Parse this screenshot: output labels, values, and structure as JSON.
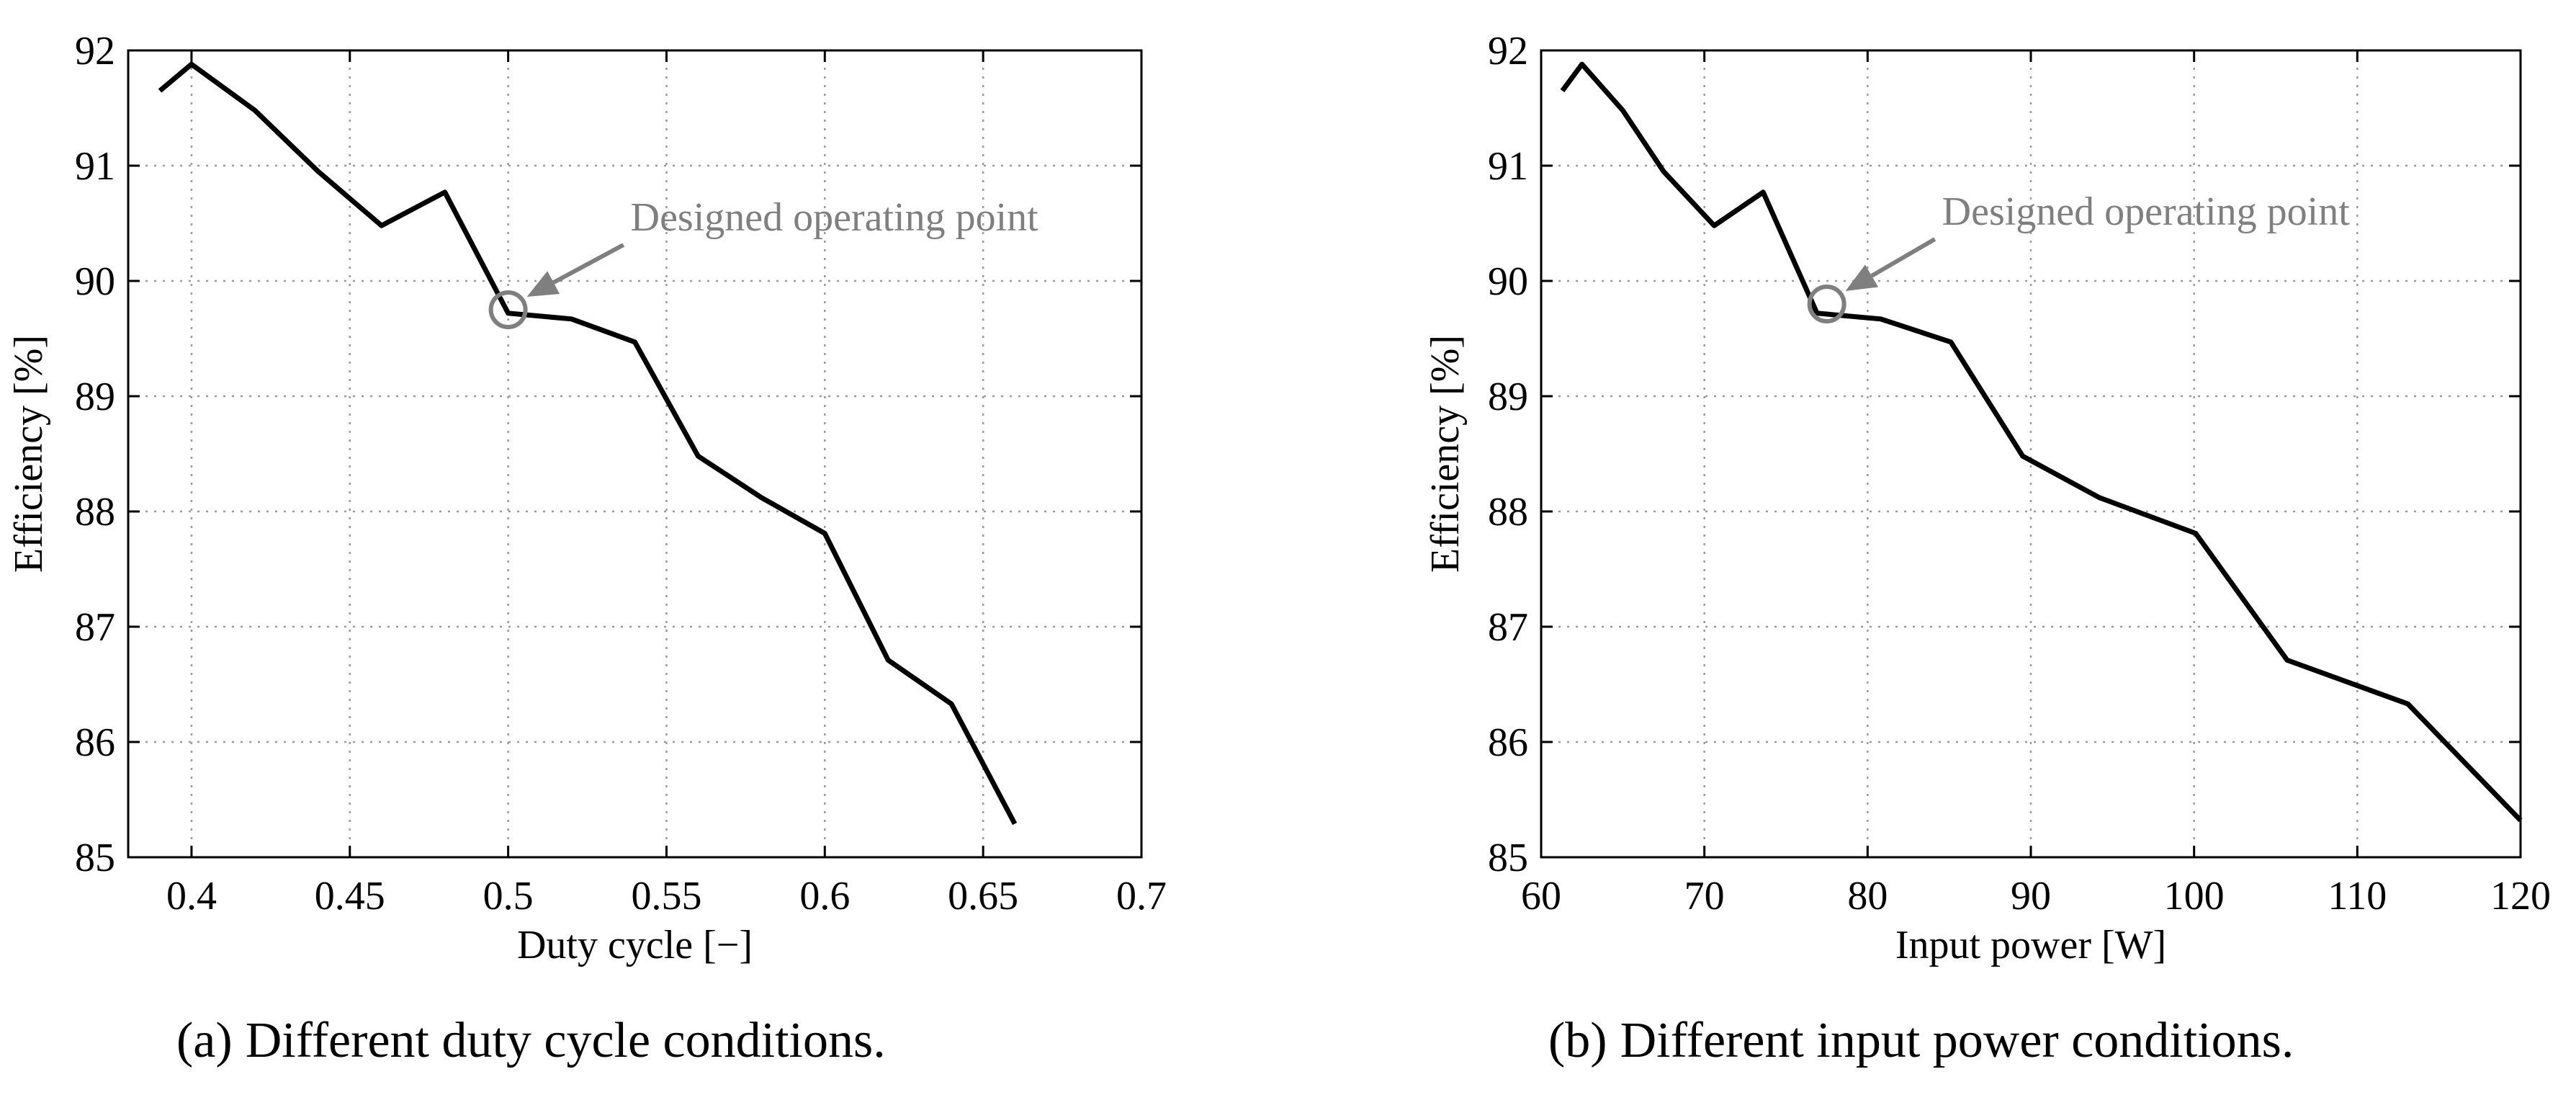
{
  "chart_data": [
    {
      "type": "line",
      "caption_label": "(a)",
      "caption": "Different duty cycle conditions.",
      "title": "",
      "xlabel": "Duty cycle [−]",
      "ylabel": "Efficiency [%]",
      "xlim": [
        0.38,
        0.7
      ],
      "ylim": [
        85,
        92
      ],
      "xticks": [
        0.4,
        0.45,
        0.5,
        0.55,
        0.6,
        0.65,
        0.7
      ],
      "xtick_labels": [
        "0.4",
        "0.45",
        "0.5",
        "0.55",
        "0.6",
        "0.65",
        "0.7"
      ],
      "yticks": [
        85,
        86,
        87,
        88,
        89,
        90,
        91,
        92
      ],
      "ytick_labels": [
        "85",
        "86",
        "87",
        "88",
        "89",
        "90",
        "91",
        "92"
      ],
      "grid": true,
      "series": [
        {
          "name": "Efficiency",
          "color": "#000000",
          "x": [
            0.39,
            0.4,
            0.42,
            0.44,
            0.46,
            0.48,
            0.5,
            0.52,
            0.54,
            0.56,
            0.58,
            0.6,
            0.62,
            0.64,
            0.66
          ],
          "y": [
            91.65,
            91.88,
            91.48,
            90.95,
            90.48,
            90.77,
            89.72,
            89.67,
            89.47,
            88.48,
            88.12,
            87.81,
            86.71,
            86.33,
            85.29
          ]
        }
      ],
      "annotation": {
        "text": "Designed operating point",
        "point_x": 0.5,
        "point_y": 89.75,
        "color": "#7f7f7f"
      }
    },
    {
      "type": "line",
      "caption_label": "(b)",
      "caption": "Different input power conditions.",
      "title": "",
      "xlabel": "Input power [W]",
      "ylabel": "Efficiency [%]",
      "xlim": [
        60,
        120
      ],
      "ylim": [
        85,
        92
      ],
      "xticks": [
        60,
        70,
        80,
        90,
        100,
        110,
        120
      ],
      "xtick_labels": [
        "60",
        "70",
        "80",
        "90",
        "100",
        "110",
        "120"
      ],
      "yticks": [
        85,
        86,
        87,
        88,
        89,
        90,
        91,
        92
      ],
      "ytick_labels": [
        "85",
        "86",
        "87",
        "88",
        "89",
        "90",
        "91",
        "92"
      ],
      "grid": true,
      "series": [
        {
          "name": "Efficiency",
          "color": "#000000",
          "x": [
            61.3,
            62.5,
            65.0,
            67.5,
            70.6,
            73.6,
            76.9,
            80.8,
            85.1,
            89.5,
            94.2,
            100.1,
            105.7,
            113.1,
            120.0
          ],
          "y": [
            91.65,
            91.88,
            91.48,
            90.95,
            90.48,
            90.77,
            89.72,
            89.67,
            89.47,
            88.48,
            88.12,
            87.81,
            86.71,
            86.33,
            85.32
          ]
        }
      ],
      "annotation": {
        "text": "Designed operating point",
        "point_x": 77.5,
        "point_y": 89.8,
        "color": "#7f7f7f"
      }
    }
  ]
}
